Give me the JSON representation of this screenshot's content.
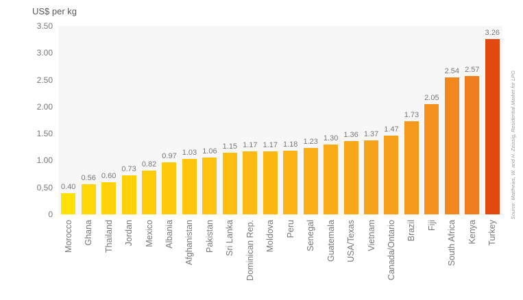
{
  "header": {
    "title": "US$ per kg"
  },
  "source_note": "Source: Matthews, W. and H. Zeissig, Residential Market for LPG",
  "colors": {
    "page_background": "#ffffff",
    "plot_background": "#f7f7f8",
    "title_text": "#55565a",
    "tick_text": "#76777a",
    "value_text": "#76777a",
    "category_text": "#76777a",
    "source_text": "#97989b",
    "highlight_bar": "#e1490f"
  },
  "chart_data": {
    "type": "bar",
    "title": "US$ per kg",
    "xlabel": "",
    "ylabel": "US$ per kg",
    "ylim": [
      0,
      3.5
    ],
    "grid": false,
    "legend": false,
    "y_ticks": [
      {
        "label": "3.50",
        "value": 3.5
      },
      {
        "label": "3.00",
        "value": 3.0
      },
      {
        "label": "2.50",
        "value": 2.5
      },
      {
        "label": "2.00",
        "value": 2.0
      },
      {
        "label": "1.50",
        "value": 1.5
      },
      {
        "label": "1.00",
        "value": 1.0
      },
      {
        "label": "0,50",
        "value": 0.5
      },
      {
        "label": "0",
        "value": 0
      }
    ],
    "categories": [
      "Morocco",
      "Ghana",
      "Thailand",
      "Jordan",
      "Mexico",
      "Albania",
      "Afghanistan",
      "Pakistan",
      "Sri Lanka",
      "Dominican Rep.",
      "Moldova",
      "Peru",
      "Senegal",
      "Guatemala",
      "USA/Texas",
      "Vietnam",
      "Canada/Ontario",
      "Brazil",
      "Fiji",
      "South Africa",
      "Kenya",
      "Turkey"
    ],
    "values": [
      0.4,
      0.56,
      0.6,
      0.73,
      0.82,
      0.97,
      1.03,
      1.06,
      1.15,
      1.17,
      1.17,
      1.18,
      1.23,
      1.3,
      1.36,
      1.37,
      1.47,
      1.73,
      2.05,
      2.54,
      2.57,
      3.26
    ],
    "value_labels": [
      "0.40",
      "0.56",
      "0.60",
      "0.73",
      "0.82",
      "0.97",
      "1.03",
      "1.06",
      "1.15",
      "1.17",
      "1.17",
      "1.18",
      "1.23",
      "1.30",
      "1.36",
      "1.37",
      "1.47",
      "1.73",
      "2.05",
      "2.54",
      "2.57",
      "3.26"
    ],
    "bar_colors": [
      "#ffe105",
      "#ffd608",
      "#ffd308",
      "#ffd009",
      "#ffcc0a",
      "#ffc90c",
      "#ffc50d",
      "#ffc20e",
      "#febe10",
      "#fdba12",
      "#fcb713",
      "#fbb315",
      "#faaf17",
      "#f9ab18",
      "#f8a719",
      "#f7a31a",
      "#f69f1b",
      "#f5991c",
      "#f4921d",
      "#f1881e",
      "#ee7d1d",
      "#e1490f"
    ]
  }
}
